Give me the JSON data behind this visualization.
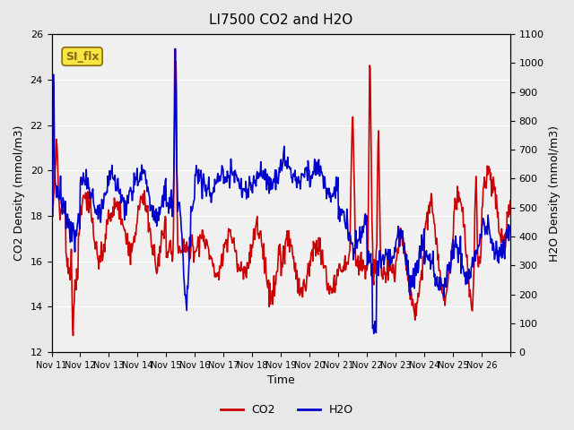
{
  "title": "LI7500 CO2 and H2O",
  "xlabel": "Time",
  "ylabel_left": "CO2 Density (mmol/m3)",
  "ylabel_right": "H2O Density (mmol/m3)",
  "ylim_left": [
    12,
    26
  ],
  "ylim_right": [
    0,
    1100
  ],
  "yticks_left": [
    12,
    14,
    16,
    18,
    20,
    22,
    24,
    26
  ],
  "yticks_right": [
    0,
    100,
    200,
    300,
    400,
    500,
    600,
    700,
    800,
    900,
    1000,
    1100
  ],
  "x_tick_positions": [
    0,
    1,
    2,
    3,
    4,
    5,
    6,
    7,
    8,
    9,
    10,
    11,
    12,
    13,
    14,
    15,
    16
  ],
  "x_tick_labels": [
    "Nov 11",
    "Nov 12",
    "Nov 13",
    "Nov 14",
    "Nov 15",
    "Nov 16",
    "Nov 17",
    "Nov 18",
    "Nov 19",
    "Nov 20",
    "Nov 21",
    "Nov 22",
    "Nov 23",
    "Nov 24",
    "Nov 25",
    "Nov 26",
    ""
  ],
  "co2_color": "#cc0000",
  "h2o_color": "#0000cc",
  "line_width": 1.2,
  "bg_color": "#e8e8e8",
  "plot_bg_color": "#f0f0f0",
  "annotation_text": "SI_flx",
  "annotation_color": "#8b6914",
  "annotation_bg": "#f5e642",
  "legend_co2": "CO2",
  "legend_h2o": "H2O",
  "n_days": 16,
  "pts_per_day": 48
}
